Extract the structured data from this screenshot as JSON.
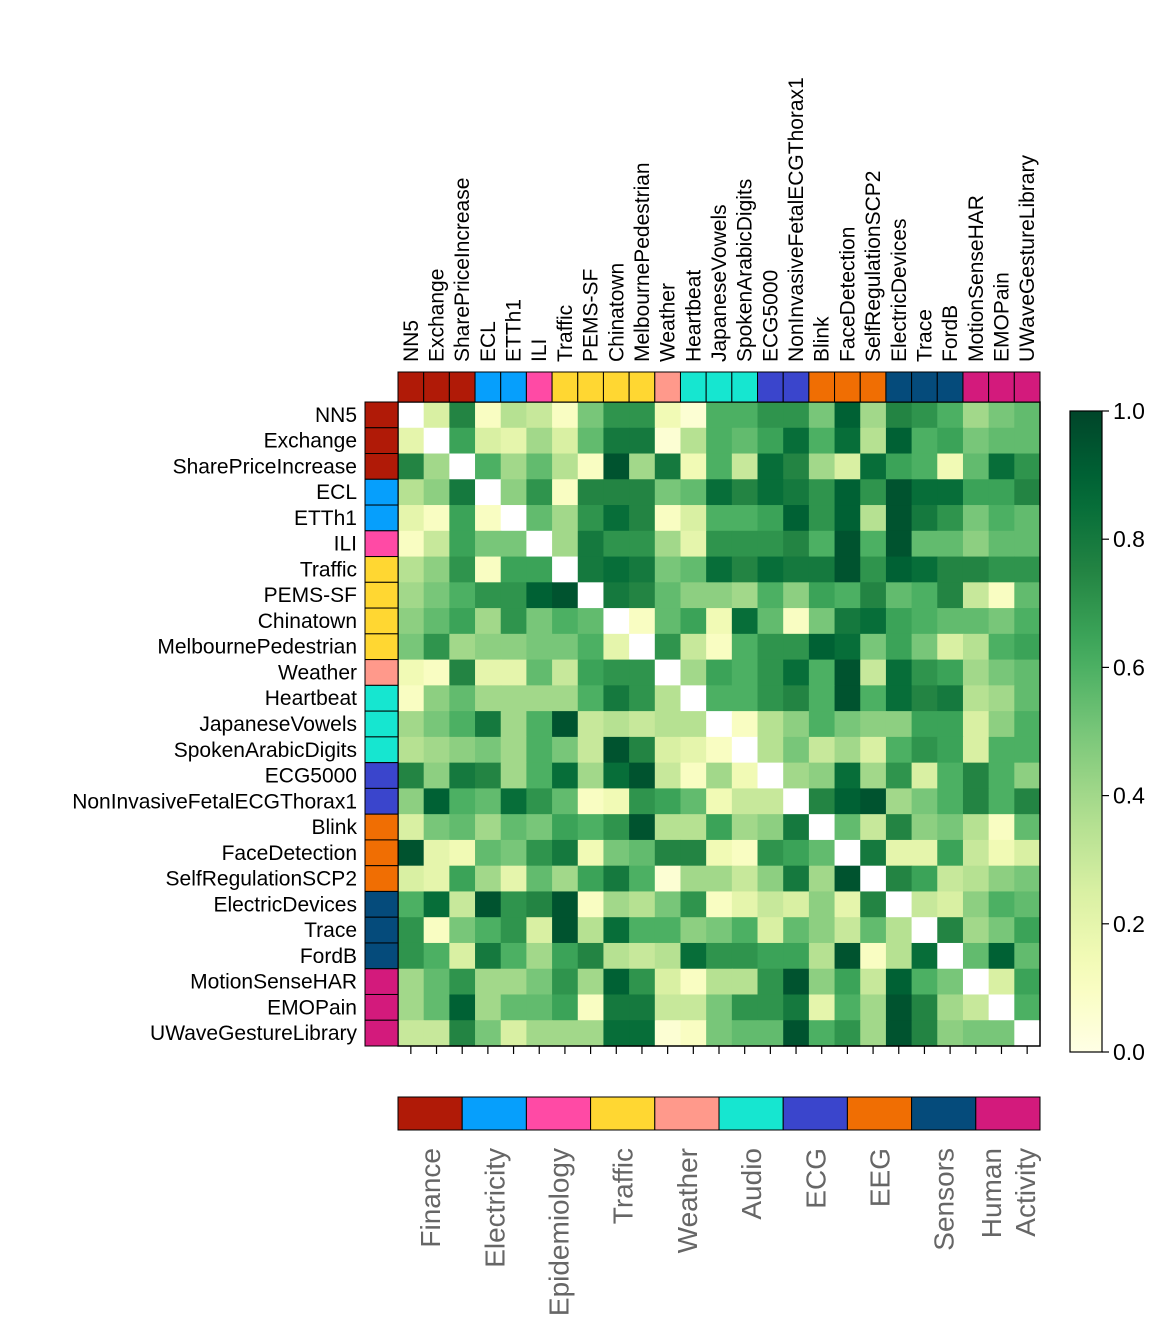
{
  "chart_data": {
    "type": "heatmap",
    "title": "",
    "labels": [
      "NN5",
      "Exchange",
      "SharePriceIncrease",
      "ECL",
      "ETTh1",
      "ILI",
      "Traffic",
      "PEMS-SF",
      "Chinatown",
      "MelbournePedestrian",
      "Weather",
      "Heartbeat",
      "JapaneseVowels",
      "SpokenArabicDigits",
      "ECG5000",
      "NonInvasiveFetalECGThorax1",
      "Blink",
      "FaceDetection",
      "SelfRegulationSCP2",
      "ElectricDevices",
      "Trace",
      "FordB",
      "MotionSenseHAR",
      "EMOPain",
      "UWaveGestureLibrary"
    ],
    "label_domains": [
      0,
      0,
      0,
      1,
      1,
      2,
      3,
      3,
      3,
      3,
      4,
      5,
      5,
      5,
      6,
      6,
      7,
      7,
      7,
      8,
      8,
      8,
      9,
      9,
      9
    ],
    "domains": [
      {
        "name": "Finance",
        "color": "#b01a07"
      },
      {
        "name": "Electricity",
        "color": "#069ffc"
      },
      {
        "name": "Epidemiology",
        "color": "#ff4aa5"
      },
      {
        "name": "Traffic",
        "color": "#ffd732"
      },
      {
        "name": "Weather",
        "color": "#ff998b"
      },
      {
        "name": "Audio",
        "color": "#16e6d0"
      },
      {
        "name": "ECG",
        "color": "#3a45cc"
      },
      {
        "name": "EEG",
        "color": "#f06e03"
      },
      {
        "name": "Sensors",
        "color": "#054b7b"
      },
      {
        "name": "Human\nActivity",
        "color": "#d31a7c"
      }
    ],
    "values": [
      [
        0.0,
        0.25,
        0.75,
        0.1,
        0.35,
        0.3,
        0.1,
        0.5,
        0.7,
        0.7,
        0.15,
        0.05,
        0.6,
        0.6,
        0.7,
        0.7,
        0.5,
        0.9,
        0.4,
        0.75,
        0.7,
        0.6,
        0.4,
        0.5,
        0.55
      ],
      [
        0.2,
        0.0,
        0.65,
        0.25,
        0.2,
        0.4,
        0.25,
        0.55,
        0.8,
        0.8,
        0.05,
        0.35,
        0.6,
        0.55,
        0.65,
        0.85,
        0.6,
        0.85,
        0.35,
        0.9,
        0.6,
        0.65,
        0.5,
        0.55,
        0.55
      ],
      [
        0.75,
        0.4,
        0.0,
        0.6,
        0.4,
        0.55,
        0.35,
        0.1,
        0.95,
        0.4,
        0.8,
        0.15,
        0.6,
        0.3,
        0.85,
        0.75,
        0.4,
        0.25,
        0.85,
        0.65,
        0.6,
        0.15,
        0.55,
        0.85,
        0.7
      ],
      [
        0.35,
        0.45,
        0.8,
        0.0,
        0.45,
        0.7,
        0.1,
        0.75,
        0.75,
        0.75,
        0.5,
        0.55,
        0.85,
        0.75,
        0.85,
        0.8,
        0.7,
        0.9,
        0.7,
        0.95,
        0.85,
        0.85,
        0.65,
        0.65,
        0.75
      ],
      [
        0.2,
        0.1,
        0.65,
        0.1,
        0.0,
        0.55,
        0.4,
        0.7,
        0.85,
        0.75,
        0.1,
        0.25,
        0.6,
        0.6,
        0.65,
        0.9,
        0.7,
        0.9,
        0.35,
        0.95,
        0.8,
        0.7,
        0.5,
        0.6,
        0.55
      ],
      [
        0.1,
        0.3,
        0.65,
        0.5,
        0.5,
        0.0,
        0.4,
        0.8,
        0.7,
        0.7,
        0.4,
        0.2,
        0.7,
        0.7,
        0.7,
        0.75,
        0.6,
        0.95,
        0.6,
        0.95,
        0.55,
        0.55,
        0.45,
        0.55,
        0.55
      ],
      [
        0.35,
        0.45,
        0.7,
        0.1,
        0.65,
        0.65,
        0.0,
        0.8,
        0.85,
        0.8,
        0.5,
        0.55,
        0.85,
        0.75,
        0.85,
        0.8,
        0.8,
        0.95,
        0.7,
        0.9,
        0.85,
        0.75,
        0.75,
        0.7,
        0.7
      ],
      [
        0.4,
        0.5,
        0.6,
        0.7,
        0.7,
        0.9,
        0.95,
        0.0,
        0.8,
        0.75,
        0.55,
        0.45,
        0.45,
        0.4,
        0.6,
        0.45,
        0.65,
        0.6,
        0.75,
        0.55,
        0.6,
        0.75,
        0.3,
        0.1,
        0.55
      ],
      [
        0.45,
        0.55,
        0.65,
        0.4,
        0.7,
        0.5,
        0.6,
        0.55,
        0.0,
        0.1,
        0.55,
        0.65,
        0.15,
        0.85,
        0.55,
        0.1,
        0.5,
        0.8,
        0.85,
        0.65,
        0.6,
        0.55,
        0.55,
        0.5,
        0.6
      ],
      [
        0.5,
        0.7,
        0.4,
        0.45,
        0.45,
        0.5,
        0.5,
        0.6,
        0.2,
        0.0,
        0.7,
        0.3,
        0.1,
        0.6,
        0.7,
        0.7,
        0.9,
        0.85,
        0.5,
        0.65,
        0.5,
        0.25,
        0.35,
        0.6,
        0.65
      ],
      [
        0.15,
        0.1,
        0.75,
        0.2,
        0.2,
        0.55,
        0.3,
        0.65,
        0.7,
        0.7,
        0.0,
        0.4,
        0.65,
        0.6,
        0.7,
        0.85,
        0.6,
        0.95,
        0.3,
        0.85,
        0.7,
        0.65,
        0.4,
        0.5,
        0.55
      ],
      [
        0.1,
        0.45,
        0.55,
        0.4,
        0.4,
        0.4,
        0.4,
        0.6,
        0.8,
        0.7,
        0.35,
        0.0,
        0.6,
        0.6,
        0.7,
        0.75,
        0.6,
        0.95,
        0.6,
        0.85,
        0.75,
        0.8,
        0.35,
        0.4,
        0.55
      ],
      [
        0.4,
        0.5,
        0.6,
        0.8,
        0.4,
        0.6,
        0.95,
        0.3,
        0.35,
        0.3,
        0.35,
        0.35,
        0.0,
        0.1,
        0.35,
        0.45,
        0.6,
        0.5,
        0.45,
        0.45,
        0.65,
        0.65,
        0.25,
        0.45,
        0.6
      ],
      [
        0.35,
        0.4,
        0.45,
        0.5,
        0.4,
        0.6,
        0.5,
        0.3,
        0.95,
        0.75,
        0.25,
        0.2,
        0.1,
        0.0,
        0.35,
        0.5,
        0.3,
        0.4,
        0.25,
        0.6,
        0.7,
        0.65,
        0.25,
        0.6,
        0.6
      ],
      [
        0.75,
        0.45,
        0.8,
        0.75,
        0.4,
        0.6,
        0.85,
        0.4,
        0.85,
        0.95,
        0.3,
        0.1,
        0.4,
        0.15,
        0.0,
        0.4,
        0.45,
        0.85,
        0.4,
        0.7,
        0.25,
        0.6,
        0.75,
        0.6,
        0.45
      ],
      [
        0.45,
        0.9,
        0.6,
        0.55,
        0.85,
        0.7,
        0.55,
        0.1,
        0.15,
        0.7,
        0.65,
        0.55,
        0.15,
        0.3,
        0.3,
        0.0,
        0.75,
        0.9,
        0.95,
        0.4,
        0.5,
        0.6,
        0.75,
        0.6,
        0.75
      ],
      [
        0.25,
        0.5,
        0.55,
        0.4,
        0.55,
        0.5,
        0.65,
        0.6,
        0.7,
        0.95,
        0.35,
        0.35,
        0.65,
        0.4,
        0.45,
        0.8,
        0.0,
        0.55,
        0.3,
        0.75,
        0.45,
        0.5,
        0.35,
        0.1,
        0.55
      ],
      [
        0.95,
        0.2,
        0.15,
        0.55,
        0.5,
        0.7,
        0.8,
        0.15,
        0.5,
        0.55,
        0.75,
        0.75,
        0.15,
        0.1,
        0.7,
        0.65,
        0.55,
        0.0,
        0.8,
        0.2,
        0.2,
        0.65,
        0.3,
        0.15,
        0.25
      ],
      [
        0.25,
        0.2,
        0.65,
        0.4,
        0.2,
        0.55,
        0.4,
        0.65,
        0.8,
        0.6,
        0.05,
        0.4,
        0.4,
        0.3,
        0.45,
        0.8,
        0.4,
        0.95,
        0.0,
        0.75,
        0.65,
        0.3,
        0.35,
        0.45,
        0.5
      ],
      [
        0.6,
        0.85,
        0.3,
        0.95,
        0.7,
        0.75,
        0.95,
        0.1,
        0.4,
        0.35,
        0.5,
        0.7,
        0.1,
        0.2,
        0.3,
        0.25,
        0.45,
        0.2,
        0.75,
        0.0,
        0.3,
        0.25,
        0.45,
        0.6,
        0.55
      ],
      [
        0.7,
        0.1,
        0.5,
        0.6,
        0.7,
        0.25,
        0.95,
        0.35,
        0.85,
        0.6,
        0.6,
        0.45,
        0.5,
        0.6,
        0.25,
        0.55,
        0.45,
        0.3,
        0.55,
        0.35,
        0.0,
        0.75,
        0.4,
        0.5,
        0.65
      ],
      [
        0.7,
        0.6,
        0.25,
        0.8,
        0.6,
        0.4,
        0.65,
        0.75,
        0.35,
        0.3,
        0.35,
        0.85,
        0.7,
        0.7,
        0.65,
        0.65,
        0.35,
        0.95,
        0.1,
        0.35,
        0.85,
        0.0,
        0.55,
        0.9,
        0.55
      ],
      [
        0.4,
        0.55,
        0.7,
        0.4,
        0.4,
        0.5,
        0.7,
        0.4,
        0.9,
        0.7,
        0.25,
        0.1,
        0.35,
        0.35,
        0.7,
        0.95,
        0.45,
        0.65,
        0.3,
        0.9,
        0.6,
        0.5,
        0.0,
        0.25,
        0.65
      ],
      [
        0.4,
        0.55,
        0.9,
        0.4,
        0.55,
        0.55,
        0.65,
        0.1,
        0.8,
        0.8,
        0.3,
        0.3,
        0.5,
        0.7,
        0.7,
        0.8,
        0.2,
        0.6,
        0.4,
        0.95,
        0.75,
        0.4,
        0.3,
        0.0,
        0.6
      ],
      [
        0.3,
        0.3,
        0.75,
        0.5,
        0.25,
        0.4,
        0.4,
        0.4,
        0.85,
        0.85,
        0.05,
        0.1,
        0.5,
        0.55,
        0.55,
        0.95,
        0.6,
        0.7,
        0.4,
        0.95,
        0.75,
        0.45,
        0.5,
        0.5,
        0.0
      ]
    ],
    "colorbar": {
      "cmap": "Greens",
      "range": [
        0.0,
        1.0
      ],
      "tick_values": [
        0.0,
        0.2,
        0.4,
        0.6,
        0.8,
        1.0
      ],
      "tick_labels": [
        "0.0",
        "0.2",
        "0.4",
        "0.6",
        "0.8",
        "1.0"
      ]
    }
  }
}
